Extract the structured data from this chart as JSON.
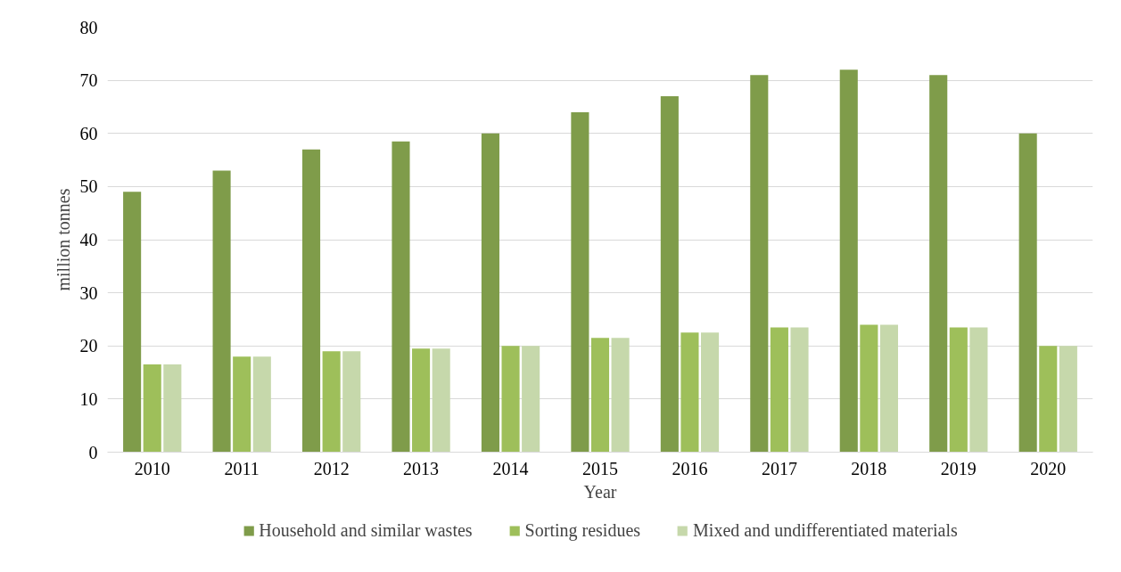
{
  "chart_data": {
    "type": "bar",
    "xlabel": "Year",
    "ylabel": "million tonnes",
    "categories": [
      "2010",
      "2011",
      "2012",
      "2013",
      "2014",
      "2015",
      "2016",
      "2017",
      "2018",
      "2019",
      "2020"
    ],
    "series": [
      {
        "name": "Household and similar wastes",
        "color": "#7f9c4a",
        "values": [
          49,
          53,
          57,
          58.5,
          60,
          64,
          67,
          71,
          72,
          71,
          60
        ]
      },
      {
        "name": "Sorting residues",
        "color": "#9ebf5a",
        "values": [
          16.5,
          18,
          19,
          19.5,
          20,
          21.5,
          22.5,
          23.5,
          24,
          23.5,
          20
        ]
      },
      {
        "name": "Mixed and undifferentiated materials",
        "color": "#c6d8ab",
        "values": [
          16.5,
          18,
          19,
          19.5,
          20,
          21.5,
          22.5,
          23.5,
          24,
          23.5,
          20
        ]
      }
    ],
    "ylim": [
      0,
      80
    ],
    "yticks": [
      0,
      10,
      20,
      30,
      40,
      50,
      60,
      70,
      80
    ],
    "grid": "y",
    "legend": "bottom"
  }
}
